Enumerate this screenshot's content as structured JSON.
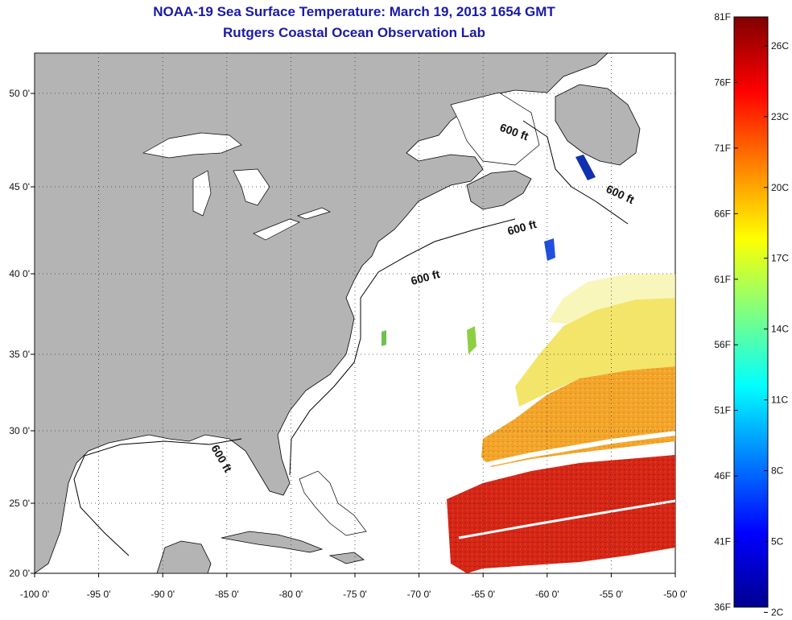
{
  "title": {
    "line1": "NOAA-19 Sea Surface Temperature:  March 19, 2013 1654 GMT",
    "line2": "Rutgers Coastal Ocean Observation Lab"
  },
  "map": {
    "lon_range": [
      -100,
      -50
    ],
    "lat_range": [
      20,
      52
    ],
    "x_ticks": [
      "-100 0'",
      "-95 0'",
      "-90 0'",
      "-85 0'",
      "-80 0'",
      "-75 0'",
      "-70 0'",
      "-65 0'",
      "-60 0'",
      "-55 0'",
      "-50 0'"
    ],
    "y_ticks": [
      "20 0'",
      "25 0'",
      "30 0'",
      "35 0'",
      "40 0'",
      "45 0'",
      "50 0'"
    ],
    "grid": "dotted",
    "land_color": "#b4b4b4",
    "ocean_color": "#ffffff",
    "contour_labels": [
      "600 ft",
      "600 ft",
      "600 ft",
      "600 ft",
      "600 ft"
    ]
  },
  "colorbar": {
    "fahrenheit_ticks": [
      "81F",
      "76F",
      "71F",
      "66F",
      "61F",
      "56F",
      "51F",
      "46F",
      "41F",
      "36F"
    ],
    "celsius_ticks": [
      "26C",
      "23C",
      "20C",
      "17C",
      "14C",
      "11C",
      "8C",
      "5C",
      "2C"
    ],
    "colormap": "jet",
    "range_f": [
      36,
      81
    ],
    "range_c": [
      2,
      27
    ]
  }
}
